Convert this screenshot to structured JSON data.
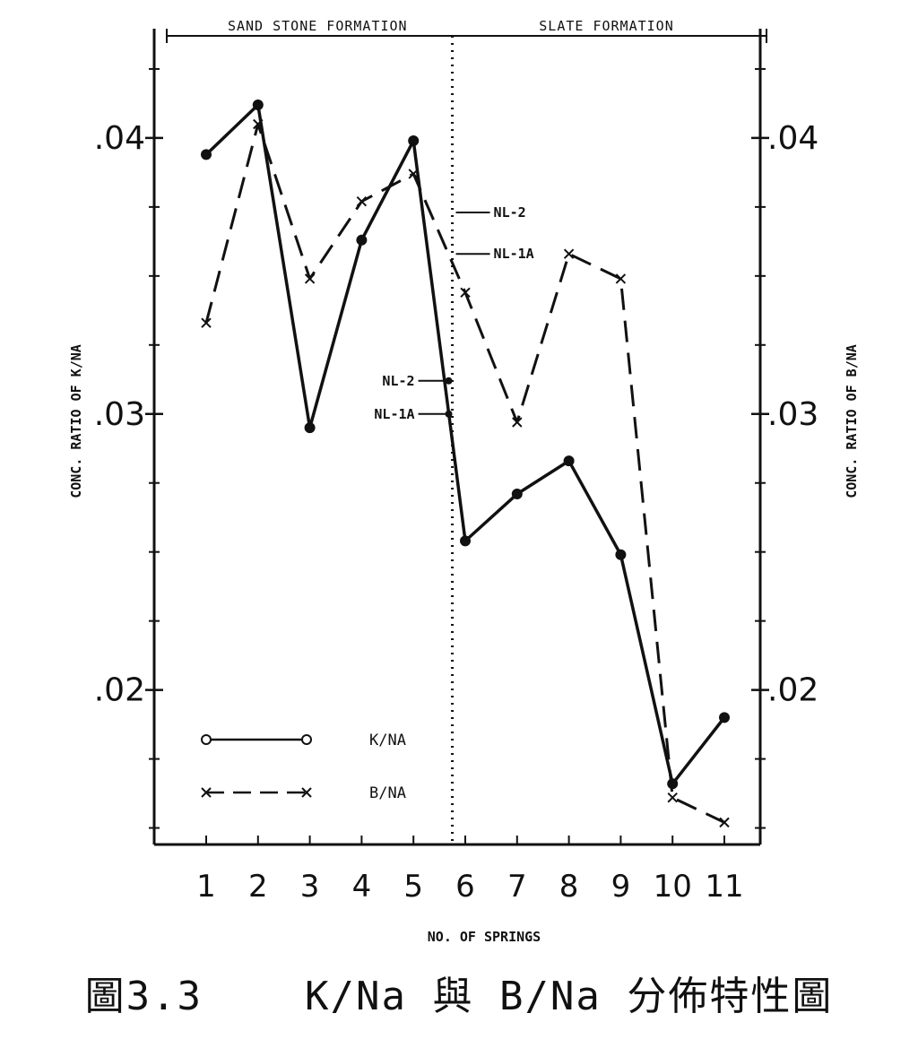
{
  "chart_data": {
    "type": "line",
    "title": "",
    "xlabel": "NO. OF SPRINGS",
    "ylabel_left": "CONC. RATIO OF K/NA",
    "ylabel_right": "CONC. RATIO OF B/NA",
    "x": [
      1,
      2,
      3,
      4,
      5,
      6,
      7,
      8,
      9,
      10,
      11
    ],
    "x_tick_labels": [
      "1",
      "2",
      "3",
      "4",
      "5",
      "6",
      "7",
      "8",
      "9",
      "10",
      "11"
    ],
    "ylim": [
      0.0144,
      0.0437
    ],
    "y_tick_labels": [
      ".02",
      ".03",
      ".04"
    ],
    "y_tick_values": [
      0.02,
      0.03,
      0.04
    ],
    "grid": false,
    "legend_position": "bottom-left",
    "regions": [
      {
        "label": "SAND STONE FORMATION",
        "x_start": 0.55,
        "x_end": 5.75
      },
      {
        "label": "SLATE FORMATION",
        "x_start": 5.75,
        "x_end": 11.7
      }
    ],
    "divider_x": 5.75,
    "series": [
      {
        "name": "K/NA",
        "style": "solid",
        "marker": "circle",
        "color": "#111111",
        "values": [
          0.0394,
          0.0412,
          0.0295,
          0.0363,
          0.0399,
          0.0254,
          0.0271,
          0.0283,
          0.0249,
          0.0166,
          0.019
        ]
      },
      {
        "name": "B/NA",
        "style": "dashed",
        "marker": "x",
        "color": "#111111",
        "values": [
          0.0333,
          0.0405,
          0.0349,
          0.0377,
          0.0387,
          0.0344,
          0.0297,
          0.0358,
          0.0349,
          0.0161,
          0.0152
        ]
      }
    ],
    "annotations": [
      {
        "text": "NL-2",
        "x": 5.75,
        "y": 0.0373,
        "side": "right"
      },
      {
        "text": "NL-1A",
        "x": 5.75,
        "y": 0.0358,
        "side": "right"
      },
      {
        "text": "NL-2",
        "x": 5.75,
        "y": 0.0312,
        "side": "left"
      },
      {
        "text": "NL-1A",
        "x": 5.75,
        "y": 0.03,
        "side": "left"
      }
    ]
  },
  "caption": "圖3.3    K/Na 與 B/Na 分佈特性圖"
}
